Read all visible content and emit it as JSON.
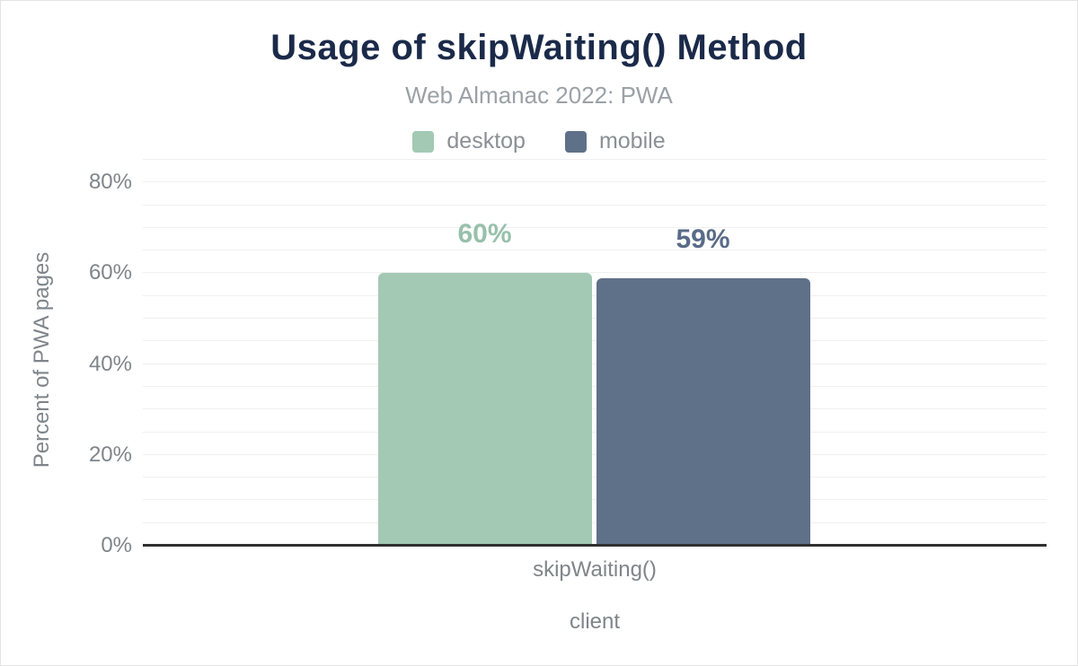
{
  "chart_data": {
    "type": "bar",
    "title": "Usage of skipWaiting() Method",
    "subtitle": "Web Almanac 2022: PWA",
    "categories": [
      "skipWaiting()"
    ],
    "series": [
      {
        "name": "desktop",
        "values": [
          60
        ],
        "value_labels": [
          "60%"
        ],
        "color": "#a3c9b5",
        "label_color": "#97c0ab"
      },
      {
        "name": "mobile",
        "values": [
          59
        ],
        "value_labels": [
          "59%"
        ],
        "color": "#5f7189",
        "label_color": "#596b87"
      }
    ],
    "xlabel": "client",
    "ylabel": "Percent of PWA pages",
    "ylim": [
      0,
      80
    ],
    "yticks": [
      {
        "value": 0,
        "label": "0%"
      },
      {
        "value": 20,
        "label": "20%"
      },
      {
        "value": 40,
        "label": "40%"
      },
      {
        "value": 60,
        "label": "60%"
      },
      {
        "value": 80,
        "label": "80%"
      }
    ],
    "grid": {
      "horizontal": true,
      "minor_step_pct": 5
    },
    "legend_position": "top"
  },
  "colors": {
    "background": "#ffffff",
    "title": "#1b2a49",
    "subtitle": "#9ba1a6",
    "axis_text": "#7f858a",
    "legend_text": "#8a9095",
    "gridline": "#f0f0f0",
    "baseline": "#303030"
  }
}
